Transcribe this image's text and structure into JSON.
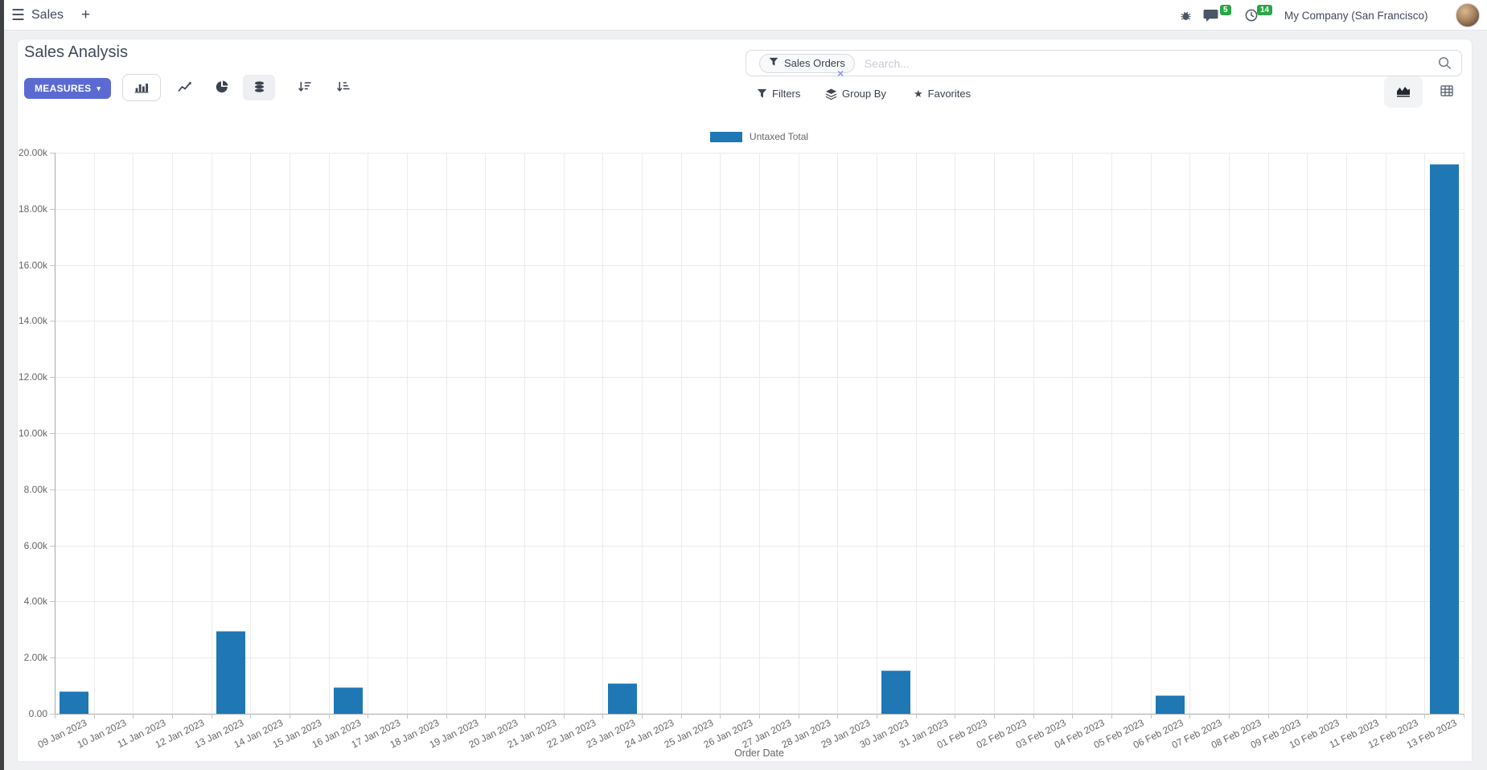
{
  "topbar": {
    "app_name": "Sales",
    "message_badge": "5",
    "activity_badge": "14",
    "company": "My Company (San Francisco)"
  },
  "control_panel": {
    "title": "Sales Analysis",
    "measures_label": "MEASURES",
    "search": {
      "facet_label": "Sales Orders",
      "placeholder": "Search...",
      "facet_remove": "×"
    },
    "filters_label": "Filters",
    "group_by_label": "Group By",
    "favorites_label": "Favorites"
  },
  "icons": {
    "hamburger": "☰",
    "plus": "+",
    "caret_down": "▾",
    "star": "★"
  },
  "colors": {
    "primary_button": "#5b6ad3",
    "badge_green": "#28a745",
    "series_blue": "#1f77b4"
  },
  "chart_data": {
    "type": "bar",
    "title": "",
    "legend": [
      "Untaxed Total"
    ],
    "legend_position": "top",
    "grid": true,
    "xlabel": "Order Date",
    "ylabel": "",
    "ylim": [
      0,
      20000
    ],
    "ytick_labels": [
      "0.00",
      "2.00k",
      "4.00k",
      "6.00k",
      "8.00k",
      "10.00k",
      "12.00k",
      "14.00k",
      "16.00k",
      "18.00k",
      "20.00k"
    ],
    "categories": [
      "09 Jan 2023",
      "10 Jan 2023",
      "11 Jan 2023",
      "12 Jan 2023",
      "13 Jan 2023",
      "14 Jan 2023",
      "15 Jan 2023",
      "16 Jan 2023",
      "17 Jan 2023",
      "18 Jan 2023",
      "19 Jan 2023",
      "20 Jan 2023",
      "21 Jan 2023",
      "22 Jan 2023",
      "23 Jan 2023",
      "24 Jan 2023",
      "25 Jan 2023",
      "26 Jan 2023",
      "27 Jan 2023",
      "28 Jan 2023",
      "29 Jan 2023",
      "30 Jan 2023",
      "31 Jan 2023",
      "01 Feb 2023",
      "02 Feb 2023",
      "03 Feb 2023",
      "04 Feb 2023",
      "05 Feb 2023",
      "06 Feb 2023",
      "07 Feb 2023",
      "08 Feb 2023",
      "09 Feb 2023",
      "10 Feb 2023",
      "11 Feb 2023",
      "12 Feb 2023",
      "13 Feb 2023"
    ],
    "series": [
      {
        "name": "Untaxed Total",
        "color": "#1f77b4",
        "values": [
          800,
          0,
          0,
          0,
          2950,
          0,
          0,
          950,
          0,
          0,
          0,
          0,
          0,
          0,
          1100,
          0,
          0,
          0,
          0,
          0,
          0,
          1550,
          0,
          0,
          0,
          0,
          0,
          0,
          650,
          0,
          0,
          0,
          0,
          0,
          0,
          19600
        ]
      }
    ]
  }
}
